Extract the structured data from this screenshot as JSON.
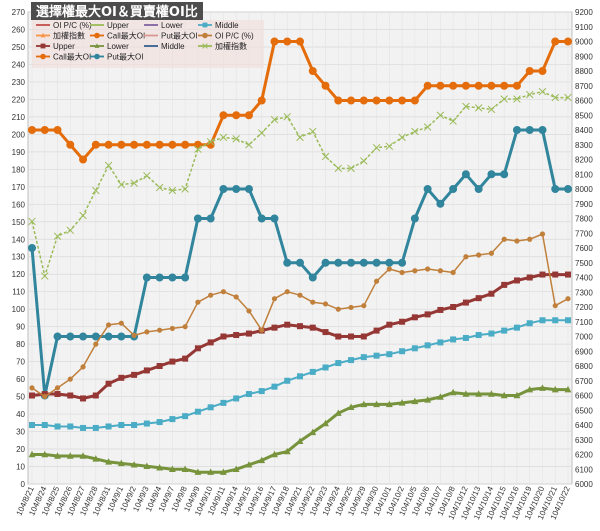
{
  "chart_data": {
    "type": "line",
    "title": "選擇權最大OI＆買賣權OI比",
    "background_color": "#f2f2f2",
    "grid": true,
    "legend_position": "top-left",
    "y_left": {
      "min": 0,
      "max": 270,
      "ticks": [
        0,
        10,
        20,
        30,
        40,
        50,
        60,
        70,
        80,
        90,
        100,
        110,
        120,
        130,
        140,
        150,
        160,
        170,
        180,
        190,
        200,
        210,
        220,
        230,
        240,
        250,
        260,
        270
      ]
    },
    "y_right": {
      "min": 6000,
      "max": 9200,
      "ticks": [
        6000,
        6100,
        6200,
        6300,
        6400,
        6500,
        6600,
        6700,
        6800,
        6900,
        7000,
        7100,
        7200,
        7300,
        7400,
        7500,
        7600,
        7700,
        7800,
        7900,
        8000,
        8100,
        8200,
        8300,
        8400,
        8500,
        8600,
        8700,
        8800,
        8900,
        9000,
        9100,
        9200
      ]
    },
    "x_labels": [
      "104/8/21",
      "104/8/24",
      "104/8/25",
      "104/8/26",
      "104/8/27",
      "104/8/28",
      "104/8/31",
      "104/9/1",
      "104/9/2",
      "104/9/3",
      "104/9/4",
      "104/9/7",
      "104/9/8",
      "104/9/9",
      "104/9/10",
      "104/9/11",
      "104/9/14",
      "104/9/15",
      "104/9/16",
      "104/9/17",
      "104/9/18",
      "104/9/21",
      "104/9/22",
      "104/9/23",
      "104/9/24",
      "104/9/25",
      "104/9/29",
      "104/9/30",
      "104/10/1",
      "104/10/2",
      "104/10/5",
      "104/10/6",
      "104/10/7",
      "104/10/8",
      "104/10/12",
      "104/10/13",
      "104/10/14",
      "104/10/15",
      "104/10/16",
      "104/10/19",
      "104/10/20",
      "104/10/21",
      "104/10/22"
    ],
    "legend": [
      {
        "name": "OI P/C (%)",
        "color": "#c0504d",
        "marker": "none"
      },
      {
        "name": "Upper",
        "color": "#9bbb59",
        "marker": "none"
      },
      {
        "name": "Lower",
        "color": "#8064a2",
        "marker": "none"
      },
      {
        "name": "Middle",
        "color": "#4bacc6",
        "marker": "square"
      },
      {
        "name": "加權指數",
        "color": "#f79646",
        "marker": "triangle"
      },
      {
        "name": "Call最大OI",
        "color": "#e46c0a",
        "marker": "circle"
      },
      {
        "name": "Put最大OI",
        "color": "#d99694",
        "marker": "none"
      },
      {
        "name": "OI P/C (%)",
        "color": "#c0803c",
        "marker": "circle"
      },
      {
        "name": "Upper",
        "color": "#953735",
        "marker": "square"
      },
      {
        "name": "Lower",
        "color": "#77933c",
        "marker": "triangle"
      },
      {
        "name": "Middle",
        "color": "#376092",
        "marker": "none"
      },
      {
        "name": "加權指數",
        "color": "#9bbb59",
        "marker": "cross"
      },
      {
        "name": "Call最大OI",
        "color": "#e46c0a",
        "marker": "circle"
      },
      {
        "name": "Put最大OI",
        "color": "#31859c",
        "marker": "circle"
      }
    ],
    "series": [
      {
        "name": "Call最大OI",
        "axis": "right",
        "color": "#e46c0a",
        "marker": "circle",
        "width": 3,
        "values": [
          8400,
          8400,
          8400,
          8300,
          8200,
          8300,
          8300,
          8300,
          8300,
          8300,
          8300,
          8300,
          8300,
          8300,
          8300,
          8500,
          8500,
          8500,
          8600,
          9000,
          9000,
          9000,
          8800,
          8700,
          8600,
          8600,
          8600,
          8600,
          8600,
          8600,
          8600,
          8700,
          8700,
          8700,
          8700,
          8700,
          8700,
          8700,
          8700,
          8800,
          8800,
          9000,
          9000
        ]
      },
      {
        "name": "Put最大OI",
        "axis": "right",
        "color": "#31859c",
        "marker": "circle",
        "width": 3,
        "values": [
          7600,
          6600,
          7000,
          7000,
          7000,
          7000,
          7000,
          7000,
          7000,
          7400,
          7400,
          7400,
          7400,
          7800,
          7800,
          8000,
          8000,
          8000,
          7800,
          7800,
          7500,
          7500,
          7400,
          7500,
          7500,
          7500,
          7500,
          7500,
          7500,
          7500,
          7800,
          8000,
          7900,
          8000,
          8100,
          8000,
          8100,
          8100,
          8400,
          8400,
          8400,
          8000,
          8000
        ]
      },
      {
        "name": "加權指數",
        "axis": "right",
        "color": "#9bbb59",
        "marker": "cross",
        "width": 1.5,
        "dashed": true,
        "values": [
          7780,
          7410,
          7680,
          7720,
          7820,
          7990,
          8160,
          8030,
          8040,
          8090,
          8010,
          7990,
          8000,
          8270,
          8320,
          8350,
          8340,
          8300,
          8380,
          8470,
          8490,
          8350,
          8390,
          8220,
          8140,
          8140,
          8190,
          8280,
          8290,
          8350,
          8390,
          8420,
          8500,
          8460,
          8560,
          8550,
          8540,
          8610,
          8610,
          8640,
          8660,
          8620,
          8620
        ]
      },
      {
        "name": "Upper",
        "axis": "right",
        "color": "#953735",
        "marker": "square",
        "width": 3,
        "values": [
          6600,
          6610,
          6610,
          6600,
          6580,
          6600,
          6680,
          6720,
          6740,
          6770,
          6800,
          6830,
          6850,
          6920,
          6960,
          7000,
          7010,
          7020,
          7040,
          7060,
          7080,
          7070,
          7060,
          7030,
          7000,
          7000,
          7000,
          7040,
          7080,
          7100,
          7130,
          7150,
          7180,
          7200,
          7230,
          7260,
          7290,
          7350,
          7380,
          7400,
          7420,
          7420,
          7420
        ]
      },
      {
        "name": "Middle",
        "axis": "right",
        "color": "#4bacc6",
        "marker": "square",
        "width": 2,
        "values": [
          6400,
          6400,
          6390,
          6390,
          6380,
          6380,
          6390,
          6400,
          6400,
          6410,
          6420,
          6440,
          6460,
          6490,
          6520,
          6550,
          6580,
          6610,
          6630,
          6660,
          6700,
          6730,
          6760,
          6790,
          6820,
          6840,
          6860,
          6870,
          6880,
          6900,
          6920,
          6940,
          6960,
          6980,
          6990,
          7010,
          7020,
          7040,
          7060,
          7090,
          7110,
          7110,
          7110
        ]
      },
      {
        "name": "Lower",
        "axis": "right",
        "color": "#77933c",
        "marker": "triangle",
        "width": 3,
        "values": [
          6200,
          6200,
          6190,
          6190,
          6190,
          6170,
          6150,
          6140,
          6130,
          6120,
          6110,
          6100,
          6100,
          6080,
          6080,
          6080,
          6100,
          6130,
          6160,
          6200,
          6220,
          6290,
          6350,
          6410,
          6480,
          6520,
          6540,
          6540,
          6540,
          6550,
          6560,
          6570,
          6590,
          6620,
          6610,
          6610,
          6610,
          6600,
          6600,
          6640,
          6650,
          6640,
          6640
        ]
      },
      {
        "name": "OI P/C (%)",
        "axis": "left",
        "color": "#c0803c",
        "marker": "circle",
        "width": 1.5,
        "values": [
          55,
          50,
          55,
          60,
          67,
          80,
          91,
          92,
          85,
          87,
          88,
          89,
          90,
          104,
          108,
          110,
          107,
          99,
          88,
          106,
          110,
          108,
          104,
          103,
          100,
          101,
          102,
          116,
          123,
          121,
          122,
          123,
          122,
          121,
          130,
          131,
          132,
          140,
          139,
          140,
          143,
          102,
          106
        ]
      }
    ]
  }
}
